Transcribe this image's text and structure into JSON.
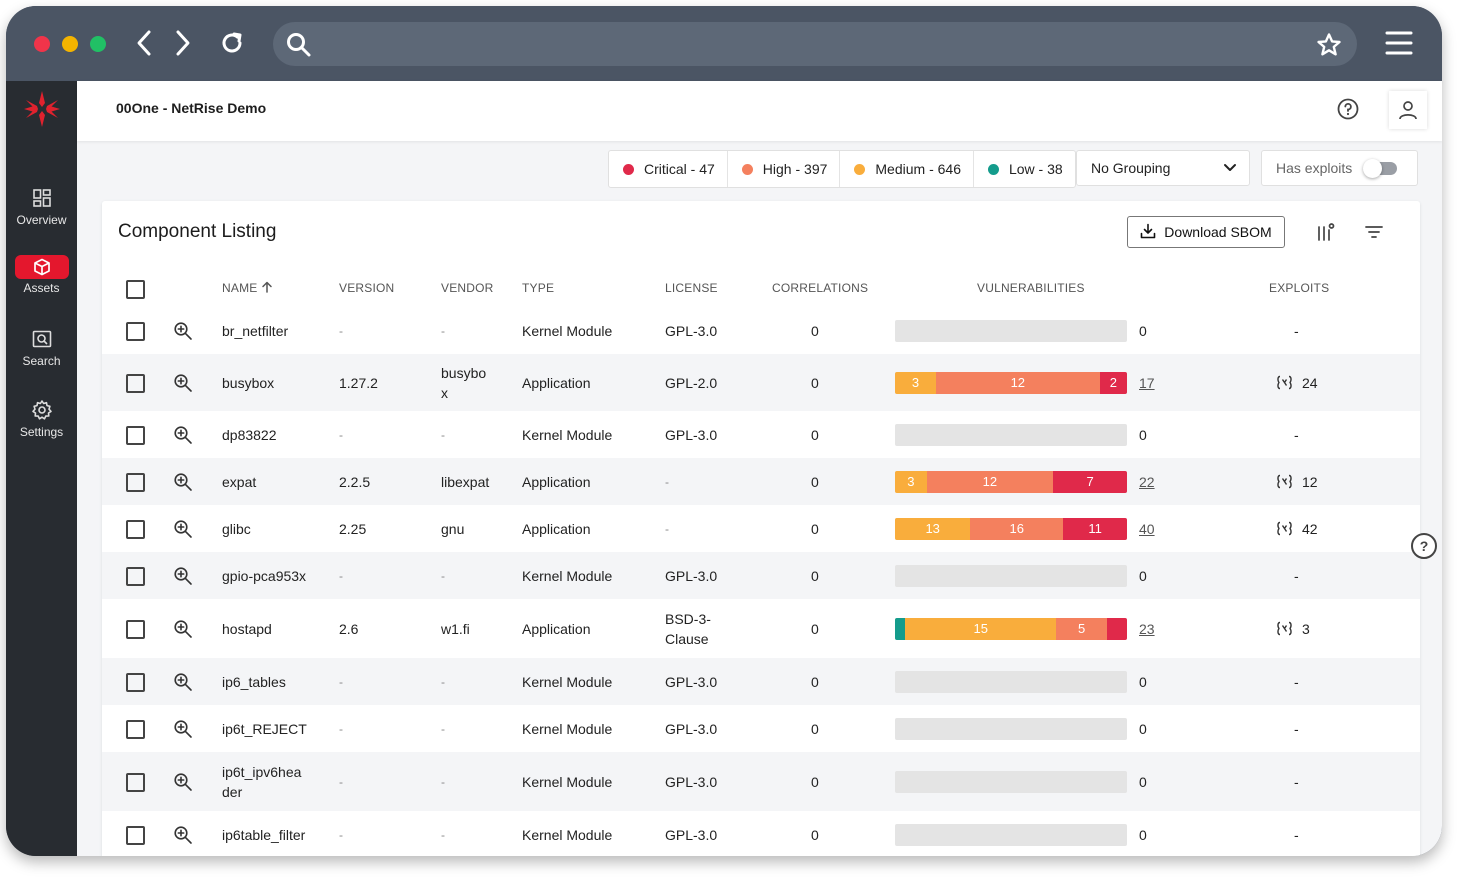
{
  "browser": {
    "address": ""
  },
  "sidebar": {
    "items": [
      {
        "label": "Overview",
        "icon": "dashboard-icon",
        "active": false
      },
      {
        "label": "Assets",
        "icon": "cube-icon",
        "active": true
      },
      {
        "label": "Search",
        "icon": "search-box-icon",
        "active": false
      },
      {
        "label": "Settings",
        "icon": "gear-icon",
        "active": false
      }
    ]
  },
  "header": {
    "project": "00One - NetRise Demo"
  },
  "filters": {
    "severities": [
      {
        "label": "Critical - 47",
        "color": "#e0294a"
      },
      {
        "label": "High - 397",
        "color": "#f4805e"
      },
      {
        "label": "Medium - 646",
        "color": "#f9ad3c"
      },
      {
        "label": "Low - 38",
        "color": "#149c8c"
      }
    ],
    "grouping": "No Grouping",
    "exploits_label": "Has exploits",
    "exploits_on": false
  },
  "listing": {
    "title": "Component Listing",
    "download_label": "Download SBOM",
    "columns": {
      "name": "NAME",
      "version": "VERSION",
      "vendor": "VENDOR",
      "type": "TYPE",
      "license": "LICENSE",
      "correlations": "CORRELATIONS",
      "vulnerabilities": "VULNERABILITIES",
      "exploits": "EXPLOITS"
    },
    "rows": [
      {
        "name": [
          "br_netfilter"
        ],
        "version": "-",
        "vendor": [
          "-"
        ],
        "type": "Kernel Module",
        "license": [
          "GPL-3.0"
        ],
        "correlations": "0",
        "vuln_segments": [],
        "vuln_total": "0",
        "exploits": "-"
      },
      {
        "name": [
          "busybox"
        ],
        "version": "1.27.2",
        "vendor": [
          "busybo",
          "x"
        ],
        "type": "Application",
        "license": [
          "GPL-2.0"
        ],
        "correlations": "0",
        "vuln_segments": [
          {
            "value": 3,
            "label": "3",
            "color": "#f9ad3c"
          },
          {
            "value": 12,
            "label": "12",
            "color": "#f4805e"
          },
          {
            "value": 2,
            "label": "2",
            "color": "#e0294a"
          }
        ],
        "vuln_total": "17",
        "exploits": "24"
      },
      {
        "name": [
          "dp83822"
        ],
        "version": "-",
        "vendor": [
          "-"
        ],
        "type": "Kernel Module",
        "license": [
          "GPL-3.0"
        ],
        "correlations": "0",
        "vuln_segments": [],
        "vuln_total": "0",
        "exploits": "-"
      },
      {
        "name": [
          "expat"
        ],
        "version": "2.2.5",
        "vendor": [
          "libexpat"
        ],
        "type": "Application",
        "license": [
          "-"
        ],
        "correlations": "0",
        "vuln_segments": [
          {
            "value": 3,
            "label": "3",
            "color": "#f9ad3c"
          },
          {
            "value": 12,
            "label": "12",
            "color": "#f4805e"
          },
          {
            "value": 7,
            "label": "7",
            "color": "#e0294a"
          }
        ],
        "vuln_total": "22",
        "exploits": "12"
      },
      {
        "name": [
          "glibc"
        ],
        "version": "2.25",
        "vendor": [
          "gnu"
        ],
        "type": "Application",
        "license": [
          "-"
        ],
        "correlations": "0",
        "vuln_segments": [
          {
            "value": 13,
            "label": "13",
            "color": "#f9ad3c"
          },
          {
            "value": 16,
            "label": "16",
            "color": "#f4805e"
          },
          {
            "value": 11,
            "label": "11",
            "color": "#e0294a"
          }
        ],
        "vuln_total": "40",
        "exploits": "42"
      },
      {
        "name": [
          "gpio-pca953x"
        ],
        "version": "-",
        "vendor": [
          "-"
        ],
        "type": "Kernel Module",
        "license": [
          "GPL-3.0"
        ],
        "correlations": "0",
        "vuln_segments": [],
        "vuln_total": "0",
        "exploits": "-"
      },
      {
        "name": [
          "hostapd"
        ],
        "version": "2.6",
        "vendor": [
          "w1.fi"
        ],
        "type": "Application",
        "license": [
          "BSD-3-",
          "Clause"
        ],
        "correlations": "0",
        "vuln_segments": [
          {
            "value": 1,
            "label": "",
            "color": "#149c8c"
          },
          {
            "value": 15,
            "label": "15",
            "color": "#f9ad3c"
          },
          {
            "value": 5,
            "label": "5",
            "color": "#f4805e"
          },
          {
            "value": 2,
            "label": "",
            "color": "#e0294a"
          }
        ],
        "vuln_total": "23",
        "exploits": "3"
      },
      {
        "name": [
          "ip6_tables"
        ],
        "version": "-",
        "vendor": [
          "-"
        ],
        "type": "Kernel Module",
        "license": [
          "GPL-3.0"
        ],
        "correlations": "0",
        "vuln_segments": [],
        "vuln_total": "0",
        "exploits": "-"
      },
      {
        "name": [
          "ip6t_REJECT"
        ],
        "version": "-",
        "vendor": [
          "-"
        ],
        "type": "Kernel Module",
        "license": [
          "GPL-3.0"
        ],
        "correlations": "0",
        "vuln_segments": [],
        "vuln_total": "0",
        "exploits": "-"
      },
      {
        "name": [
          "ip6t_ipv6hea",
          "der"
        ],
        "version": "-",
        "vendor": [
          "-"
        ],
        "type": "Kernel Module",
        "license": [
          "GPL-3.0"
        ],
        "correlations": "0",
        "vuln_segments": [],
        "vuln_total": "0",
        "exploits": "-"
      },
      {
        "name": [
          "ip6table_filter"
        ],
        "version": "-",
        "vendor": [
          "-"
        ],
        "type": "Kernel Module",
        "license": [
          "GPL-3.0"
        ],
        "correlations": "0",
        "vuln_segments": [],
        "vuln_total": "0",
        "exploits": "-"
      }
    ]
  }
}
